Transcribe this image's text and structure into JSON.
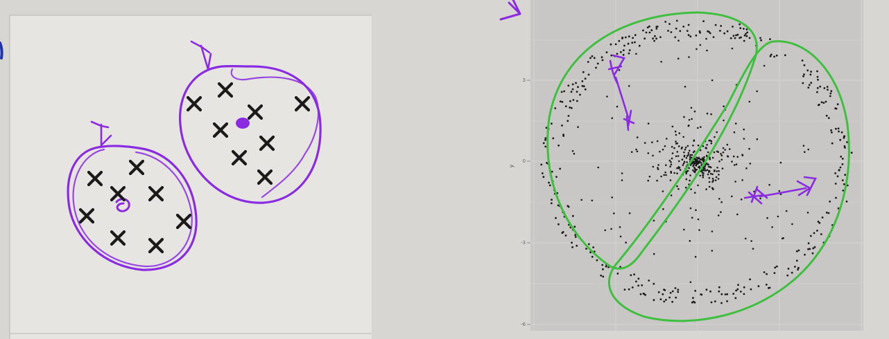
{
  "colors": {
    "screen_bg": "#d8d6d3",
    "left_panel": "#e6e5e2",
    "plot_panel": "#c9c7c5",
    "grid": "#d6d4d2",
    "ink_purple": "#8a2be2",
    "ink_green": "#3fbf3f",
    "marker": "#1a1a1a",
    "point": "#1a1a1a"
  },
  "right_plot": {
    "axis_label_y": "y",
    "ytick_labels": [
      "3",
      "0",
      "-3",
      "-6"
    ],
    "xtick_labels": [
      "",
      "",
      "",
      ""
    ]
  }
}
